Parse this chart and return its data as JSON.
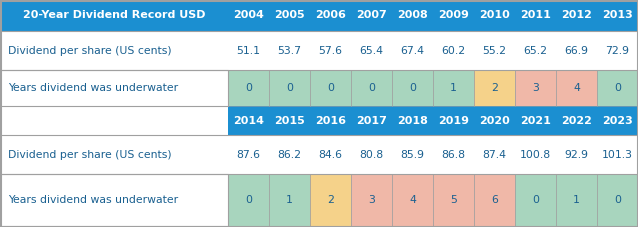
{
  "title": "20-Year Dividend Record USD",
  "header_bg": "#1b8fd1",
  "header_text_color": "#ffffff",
  "row_label_color": "#1a6090",
  "years_row1": [
    "2004",
    "2005",
    "2006",
    "2007",
    "2008",
    "2009",
    "2010",
    "2011",
    "2012",
    "2013"
  ],
  "years_row2": [
    "2014",
    "2015",
    "2016",
    "2017",
    "2018",
    "2019",
    "2020",
    "2021",
    "2022",
    "2023"
  ],
  "dps_row1": [
    "51.1",
    "53.7",
    "57.6",
    "65.4",
    "67.4",
    "60.2",
    "55.2",
    "65.2",
    "66.9",
    "72.9"
  ],
  "dps_row2": [
    "87.6",
    "86.2",
    "84.6",
    "80.8",
    "85.9",
    "86.8",
    "87.4",
    "100.8",
    "92.9",
    "101.3"
  ],
  "underwater_row1": [
    "0",
    "0",
    "0",
    "0",
    "0",
    "1",
    "2",
    "3",
    "4",
    "0"
  ],
  "underwater_row2": [
    "0",
    "1",
    "2",
    "3",
    "4",
    "5",
    "6",
    "0",
    "1",
    "0"
  ],
  "underwater_colors_row1": [
    "#a8d5be",
    "#a8d5be",
    "#a8d5be",
    "#a8d5be",
    "#a8d5be",
    "#a8d5be",
    "#f5d28a",
    "#f0b8a8",
    "#f0b8a8",
    "#a8d5be"
  ],
  "underwater_colors_row2": [
    "#a8d5be",
    "#a8d5be",
    "#f5d28a",
    "#f0b8a8",
    "#f0b8a8",
    "#f0b8a8",
    "#f0b8a8",
    "#a8d5be",
    "#a8d5be",
    "#a8d5be"
  ],
  "label_dps": "Dividend per share (US cents)",
  "label_underwater": "Years dividend was underwater",
  "bg_color": "#ffffff",
  "border_color": "#a0a0a0"
}
